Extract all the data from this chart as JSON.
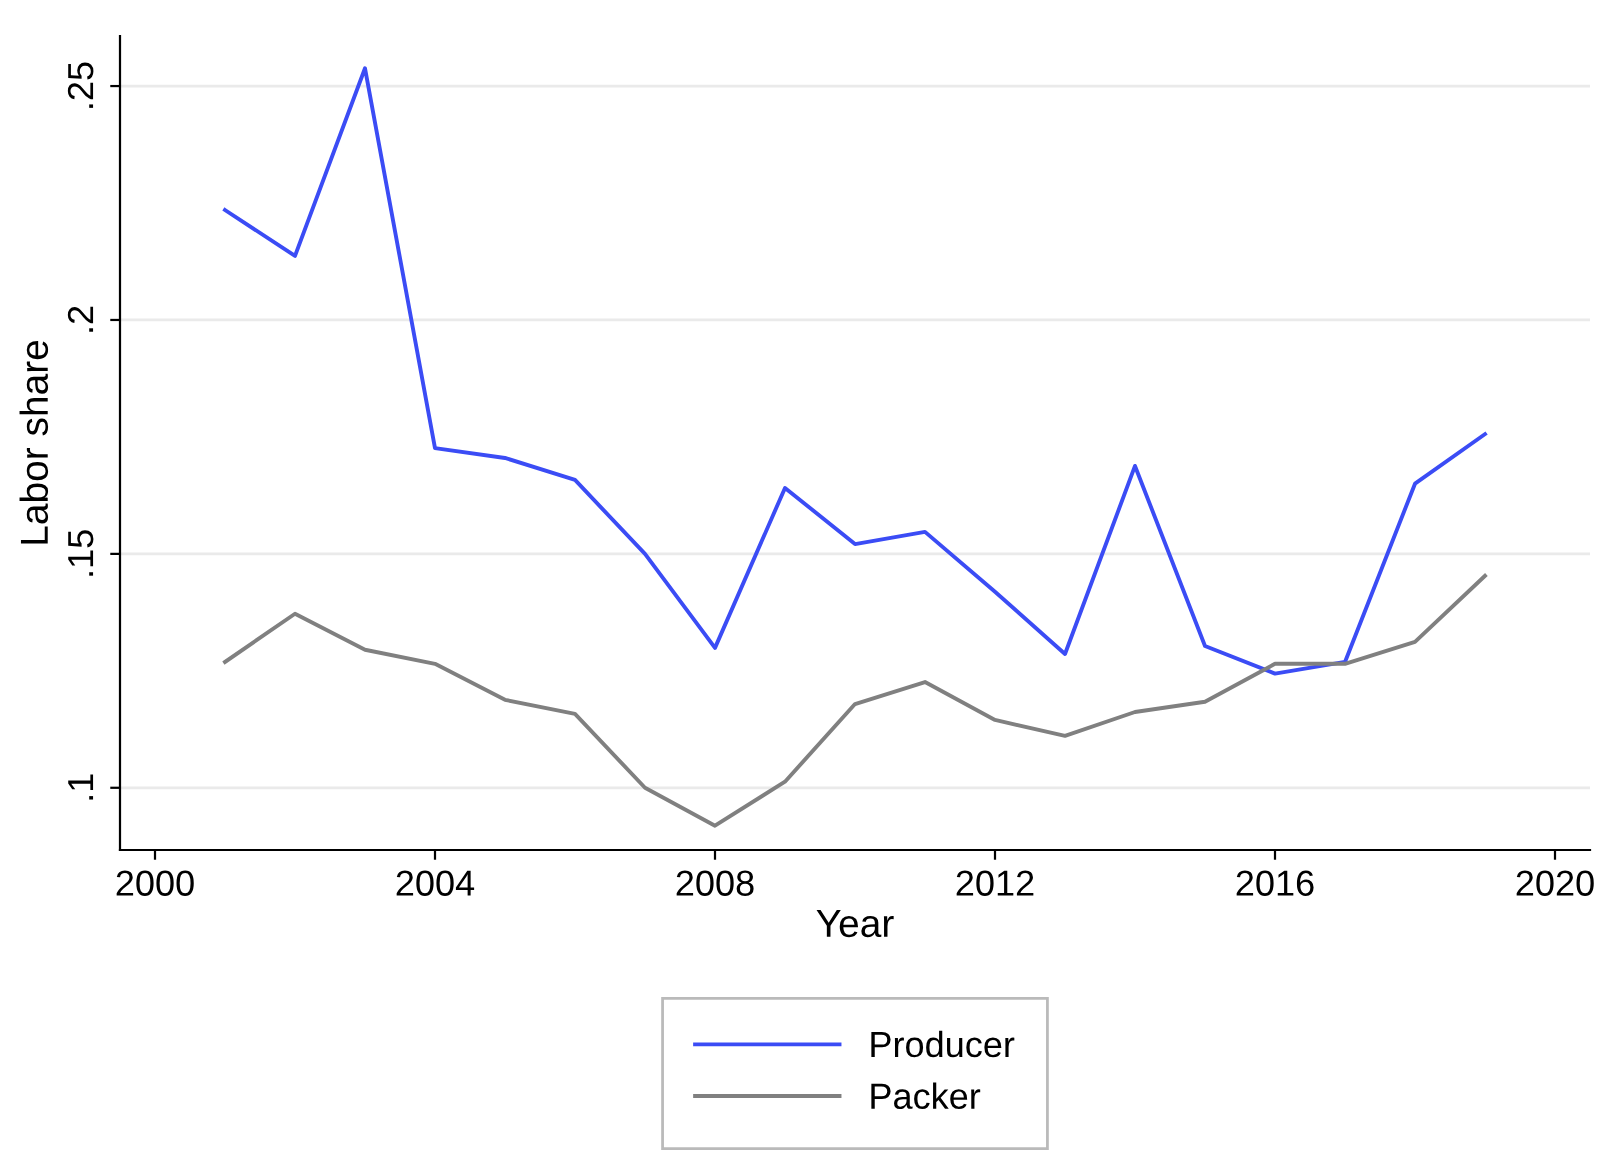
{
  "chart_data": {
    "type": "line",
    "xlabel": "Year",
    "ylabel": "Labor share",
    "x": [
      2001,
      2002,
      2003,
      2004,
      2005,
      2006,
      2007,
      2008,
      2009,
      2010,
      2011,
      2012,
      2013,
      2014,
      2015,
      2016,
      2017,
      2018,
      2019
    ],
    "series": [
      {
        "name": "Producer",
        "color": "#3b4cf5",
        "values": [
          0.2235,
          0.2137,
          0.2538,
          0.1726,
          0.1705,
          0.1658,
          0.15,
          0.1299,
          0.1641,
          0.1521,
          0.1547,
          0.1419,
          0.1286,
          0.1688,
          0.1303,
          0.1244,
          0.1269,
          0.165,
          0.1756
        ]
      },
      {
        "name": "Packer",
        "color": "#808080",
        "values": [
          0.1269,
          0.1372,
          0.1295,
          0.1265,
          0.1188,
          0.1158,
          0.1,
          0.0919,
          0.1013,
          0.1179,
          0.1226,
          0.1145,
          0.1111,
          0.1162,
          0.1184,
          0.1265,
          0.1265,
          0.1312,
          0.1453
        ]
      }
    ],
    "xlim": [
      1999.5,
      2020.5
    ],
    "xticks": [
      2000,
      2004,
      2008,
      2012,
      2016,
      2020
    ],
    "ylim": [
      0.0867,
      0.2607
    ],
    "yticks": [
      {
        "value": 0.1,
        "label": ".1"
      },
      {
        "value": 0.15,
        "label": ".15"
      },
      {
        "value": 0.2,
        "label": ".2"
      },
      {
        "value": 0.25,
        "label": ".25"
      }
    ],
    "grid": "y",
    "legend": "bottom"
  }
}
